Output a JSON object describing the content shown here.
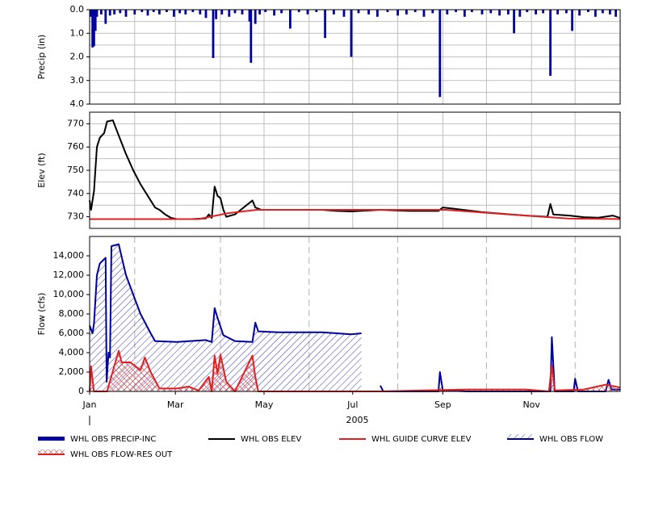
{
  "chart_data": [
    {
      "type": "bar",
      "y_label": "Precip (in)",
      "y_inverted": true,
      "xlim": [
        0,
        365
      ],
      "ylim": [
        0,
        4
      ],
      "yticks": [
        {
          "value": 0,
          "label": "0.0"
        },
        {
          "value": 1,
          "label": "1.0"
        },
        {
          "value": 2,
          "label": "2.0"
        },
        {
          "value": 3,
          "label": "3.0"
        },
        {
          "value": 4,
          "label": "4.0"
        }
      ],
      "ygrid": [
        0.5,
        1,
        1.5,
        2,
        2.5,
        3,
        3.5
      ],
      "xgrid": [
        31,
        59,
        90,
        120,
        151,
        181,
        212,
        243,
        273,
        304,
        334
      ],
      "series": [
        {
          "name": "WHL OBS PRECIP-INC",
          "color": "#0000a0",
          "x": [
            1,
            2,
            3,
            4,
            5,
            8,
            11,
            14,
            17,
            21,
            25,
            31,
            36,
            40,
            44,
            48,
            53,
            58,
            62,
            66,
            71,
            76,
            80,
            85,
            87,
            91,
            96,
            100,
            105,
            110,
            111,
            114,
            117,
            121,
            127,
            132,
            138,
            144,
            150,
            156,
            162,
            168,
            175,
            180,
            185,
            192,
            198,
            205,
            212,
            218,
            224,
            230,
            236,
            241,
            246,
            252,
            258,
            263,
            270,
            276,
            282,
            288,
            292,
            296,
            301,
            307,
            312,
            317,
            322,
            328,
            332,
            337,
            343,
            348,
            353,
            358,
            362
          ],
          "values": [
            0.3,
            1.6,
            1.55,
            0.9,
            0.3,
            0.2,
            0.6,
            0.25,
            0.2,
            0.15,
            0.3,
            0.2,
            0.1,
            0.25,
            0.1,
            0.2,
            0.1,
            0.3,
            0.15,
            0.2,
            0.1,
            0.2,
            0.35,
            2.05,
            0.4,
            0.2,
            0.3,
            0.15,
            0.2,
            0.5,
            2.25,
            0.6,
            0.2,
            0.1,
            0.25,
            0.15,
            0.8,
            0.1,
            0.2,
            0.1,
            1.2,
            0.2,
            0.3,
            2.0,
            0.15,
            0.2,
            0.3,
            0.1,
            0.25,
            0.2,
            0.1,
            0.3,
            0.15,
            3.7,
            0.2,
            0.1,
            0.3,
            0.1,
            0.2,
            0.15,
            0.25,
            0.2,
            1.0,
            0.3,
            0.1,
            0.2,
            0.15,
            2.8,
            0.2,
            0.15,
            0.9,
            0.25,
            0.1,
            0.3,
            0.15,
            0.2,
            0.3
          ]
        }
      ]
    },
    {
      "type": "line",
      "y_label": "Elev (ft)",
      "xlim": [
        0,
        365
      ],
      "ylim": [
        725,
        775
      ],
      "yticks": [
        730,
        740,
        750,
        760,
        770
      ],
      "ygrid": [
        735,
        740,
        745,
        750,
        755,
        760,
        765,
        770
      ],
      "xgrid": [
        31,
        59,
        90,
        120,
        151,
        181,
        212,
        243,
        273,
        304,
        334
      ],
      "series": [
        {
          "name": "WHL OBS ELEV",
          "color": "#000000",
          "x": [
            0,
            1,
            3,
            5,
            7,
            10,
            12,
            16,
            20,
            25,
            30,
            35,
            40,
            45,
            48,
            52,
            56,
            60,
            70,
            80,
            82,
            84,
            86,
            88,
            90,
            92,
            94,
            100,
            112,
            114,
            118,
            140,
            160,
            170,
            180,
            200,
            220,
            240,
            243,
            250,
            270,
            300,
            315,
            317,
            319,
            330,
            340,
            350,
            360,
            365
          ],
          "values": [
            737,
            733,
            741,
            760,
            764,
            766,
            771,
            771.5,
            765,
            757,
            750,
            744,
            739,
            734,
            733,
            731,
            729.5,
            729,
            729,
            729.3,
            731,
            729.5,
            743,
            739,
            738,
            733,
            730,
            731,
            737,
            734,
            733,
            733,
            733,
            732.5,
            732.3,
            733,
            732.5,
            732.5,
            734,
            733.5,
            732,
            730.5,
            730,
            735.5,
            731,
            730.5,
            729.8,
            729.6,
            730.5,
            729.5
          ]
        },
        {
          "name": "WHL GUIDE CURVE ELEV",
          "color": "#e02020",
          "x": [
            0,
            75,
            95,
            115,
            245,
            300,
            330,
            365
          ],
          "values": [
            729,
            729,
            731.5,
            733,
            733,
            730.5,
            729.2,
            729
          ]
        }
      ]
    },
    {
      "type": "line",
      "y_label": "Flow (cfs)",
      "x_label": "2005",
      "xlim": [
        0,
        365
      ],
      "ylim": [
        0,
        16000
      ],
      "yticks": [
        0,
        {
          "value": 2000,
          "label": "2,000"
        },
        {
          "value": 4000,
          "label": "4,000"
        },
        {
          "value": 6000,
          "label": "6,000"
        },
        {
          "value": 8000,
          "label": "8,000"
        },
        {
          "value": 10000,
          "label": "10,000"
        },
        {
          "value": 12000,
          "label": "12,000"
        },
        {
          "value": 14000,
          "label": "14,000"
        }
      ],
      "xticks": [
        {
          "value": 0,
          "label": "Jan"
        },
        {
          "value": 59,
          "label": "Mar"
        },
        {
          "value": 120,
          "label": "May"
        },
        {
          "value": 181,
          "label": "Jul"
        },
        {
          "value": 243,
          "label": "Sep"
        },
        {
          "value": 304,
          "label": "Nov"
        }
      ],
      "xgrid_dashed": [
        31,
        90,
        151,
        212,
        273,
        334
      ],
      "series": [
        {
          "name": "WHL OBS FLOW",
          "color": "#0000a0",
          "hatch": true,
          "x": [
            0,
            2,
            3,
            5,
            7,
            11,
            11.7,
            13,
            14,
            15,
            20,
            25,
            35,
            42,
            45,
            60,
            80,
            84,
            86,
            88,
            92,
            100,
            112,
            114,
            116,
            130,
            160,
            180,
            187,
            195,
            200,
            202,
            240,
            241,
            243,
            260,
            300,
            317,
            318,
            320,
            333,
            334,
            336,
            355,
            357,
            359,
            365
          ],
          "values": [
            6800,
            6000,
            7000,
            12000,
            13200,
            13800,
            1000,
            4000,
            3500,
            15000,
            15200,
            12000,
            8000,
            6000,
            5200,
            5100,
            5300,
            5100,
            8600,
            7600,
            5800,
            5200,
            5100,
            7100,
            6200,
            6100,
            6100,
            5900,
            6000,
            null,
            600,
            0,
            0,
            2000,
            100,
            0,
            0,
            0,
            5600,
            0,
            0,
            1300,
            0,
            0,
            1200,
            200,
            200
          ]
        },
        {
          "name": "WHL OBS FLOW-RES OUT",
          "color": "#e02020",
          "hatch": true,
          "x": [
            0,
            1,
            2,
            3,
            12,
            20,
            22,
            28,
            35,
            38,
            42,
            48,
            60,
            68,
            75,
            82,
            84,
            86,
            88,
            90,
            94,
            100,
            112,
            114,
            116,
            130,
            200,
            260,
            300,
            316,
            318,
            320,
            340,
            355,
            365
          ],
          "values": [
            0,
            2600,
            1200,
            0,
            0,
            4200,
            3000,
            3000,
            2200,
            3500,
            2000,
            300,
            300,
            500,
            100,
            1500,
            0,
            3700,
            1800,
            3800,
            1000,
            0,
            3700,
            1500,
            0,
            0,
            0,
            200,
            200,
            0,
            2700,
            100,
            200,
            700,
            400
          ]
        }
      ]
    }
  ]
}
